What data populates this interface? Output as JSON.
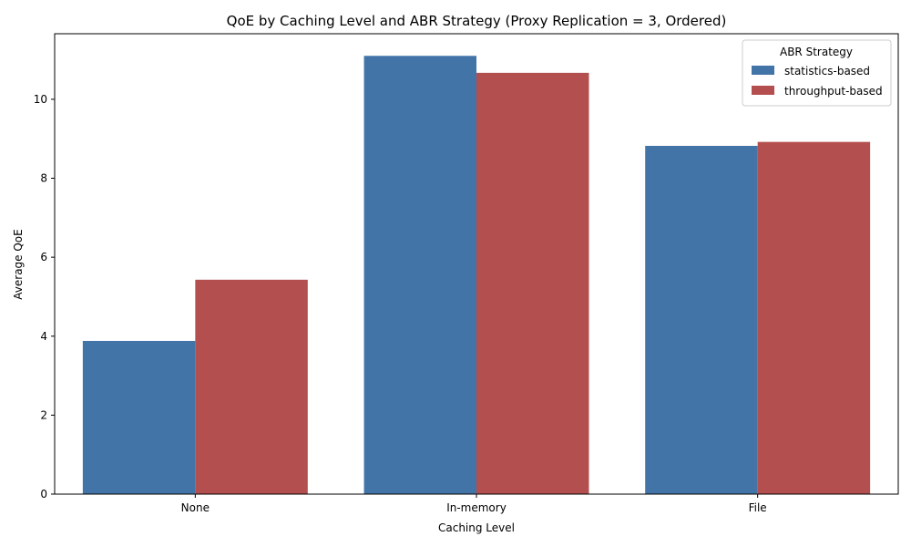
{
  "chart_data": {
    "type": "bar",
    "title": "QoE by Caching Level and ABR Strategy (Proxy Replication = 3, Ordered)",
    "xlabel": "Caching Level",
    "ylabel": "Average QoE",
    "categories": [
      "None",
      "In-memory",
      "File"
    ],
    "series": [
      {
        "name": "statistics-based",
        "color": "#4374a8",
        "values": [
          3.88,
          11.1,
          8.82
        ]
      },
      {
        "name": "throughput-based",
        "color": "#b44f4f",
        "values": [
          5.43,
          10.67,
          8.92
        ]
      }
    ],
    "ylim": [
      0,
      11.66
    ],
    "yticks": [
      0,
      2,
      4,
      6,
      8,
      10
    ],
    "legend": {
      "title": "ABR Strategy",
      "position": "top-right"
    },
    "grid": false
  }
}
